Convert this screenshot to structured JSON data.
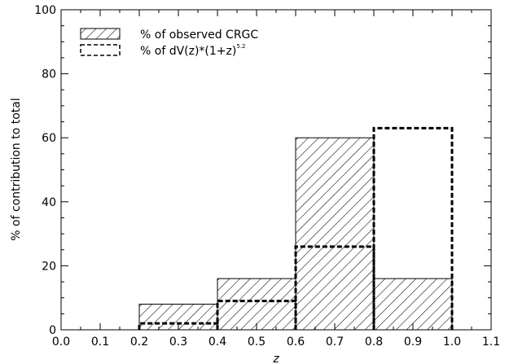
{
  "chart_data": {
    "type": "bar",
    "title": "",
    "xlabel": "z",
    "ylabel": "% of contribution to total",
    "xlim": [
      0.0,
      1.1
    ],
    "ylim": [
      0,
      100
    ],
    "x_ticks": [
      "0.0",
      "0.1",
      "0.2",
      "0.3",
      "0.4",
      "0.5",
      "0.6",
      "0.7",
      "0.8",
      "0.9",
      "1.0",
      "1.1"
    ],
    "y_ticks": [
      "0",
      "20",
      "40",
      "60",
      "80",
      "100"
    ],
    "grid": false,
    "legend_position": "top-left",
    "bin_edges": [
      0.2,
      0.4,
      0.6,
      0.8,
      1.0
    ],
    "series": [
      {
        "name": "% of observed CRGC",
        "style": "hatched",
        "values": [
          8,
          16,
          60,
          16
        ]
      },
      {
        "name": "% of dV(z)*(1+z)",
        "name_superscript": "5.2",
        "style": "dashed",
        "values": [
          2,
          9,
          26,
          63
        ]
      }
    ]
  }
}
